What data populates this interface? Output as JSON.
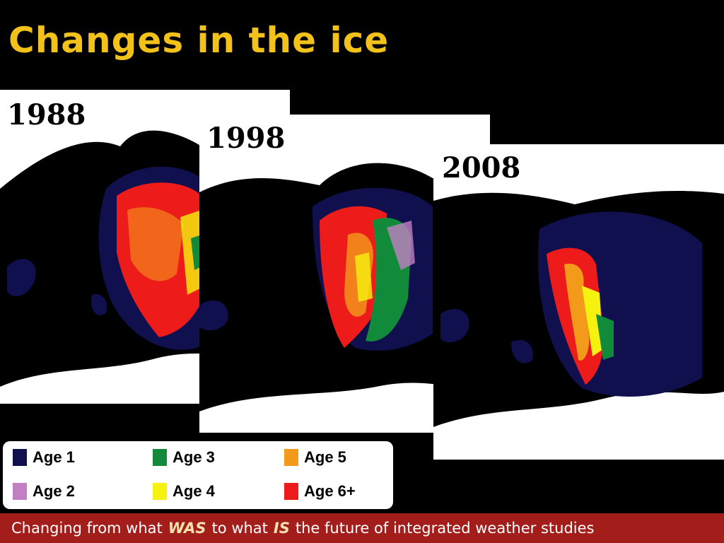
{
  "slide": {
    "title": "Changes in the ice"
  },
  "maps": [
    {
      "year": "1988"
    },
    {
      "year": "1998"
    },
    {
      "year": "2008"
    }
  ],
  "legend": {
    "items": [
      {
        "label": "Age 1",
        "color": "#10104e"
      },
      {
        "label": "Age 2",
        "color": "#c27fc4"
      },
      {
        "label": "Age 3",
        "color": "#118a3a"
      },
      {
        "label": "Age 4",
        "color": "#f5f20f"
      },
      {
        "label": "Age 5",
        "color": "#f39a1b"
      },
      {
        "label": "Age 6+",
        "color": "#ee1b1b"
      }
    ]
  },
  "footer": {
    "part1": "Changing from what",
    "was": "WAS",
    "part2": "to what",
    "is": "IS",
    "part3": "the future of integrated weather studies"
  }
}
